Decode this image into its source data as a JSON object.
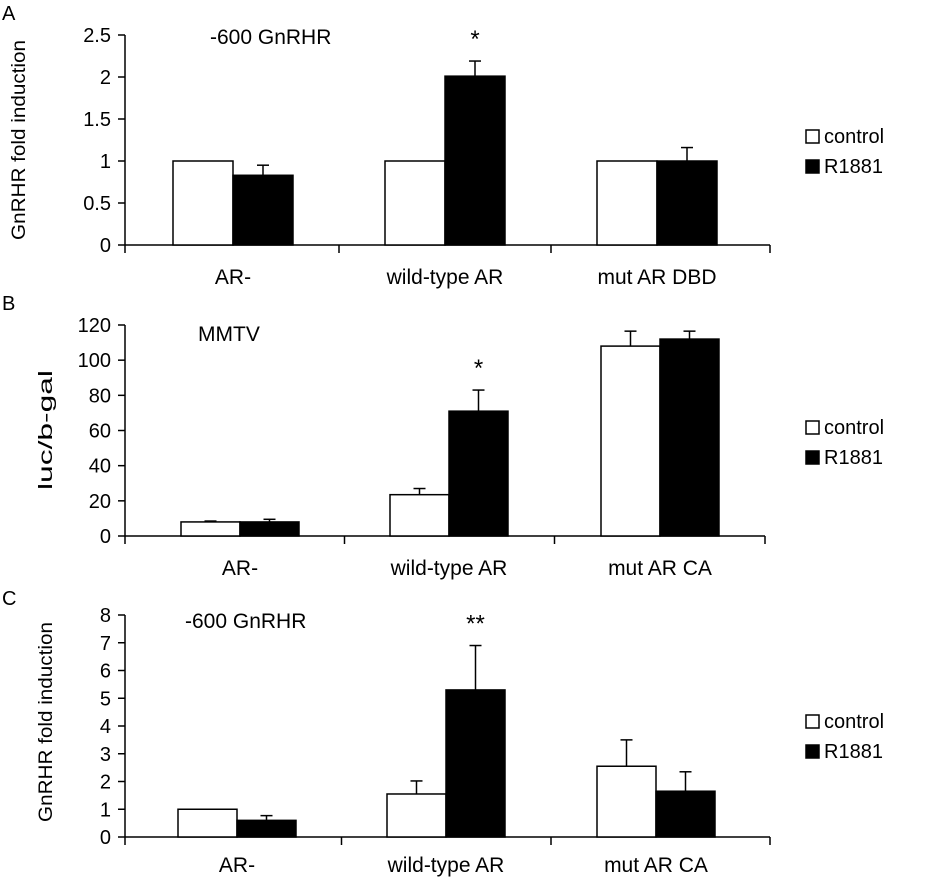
{
  "chart_data": [
    {
      "panel_label": "A",
      "type": "bar",
      "title": "-600 GnRHR",
      "ylabel": "GnRHR fold induction",
      "xlabel": "",
      "ylim": [
        0,
        2.5
      ],
      "yticks": [
        "0",
        "0.5",
        "1",
        "1.5",
        "2",
        "2.5"
      ],
      "yticks_values": [
        0,
        0.5,
        1,
        1.5,
        2,
        2.5
      ],
      "categories": [
        "AR-",
        "wild-type AR",
        "mut AR DBD"
      ],
      "series": [
        {
          "name": "control",
          "color": "#ffffff",
          "values": [
            1.0,
            1.0,
            1.0
          ],
          "errors": [
            0,
            0,
            0
          ]
        },
        {
          "name": "R1881",
          "color": "#000000",
          "values": [
            0.83,
            2.01,
            1.0
          ],
          "errors": [
            0.12,
            0.18,
            0.16
          ]
        }
      ],
      "annotations": [
        {
          "category": 1,
          "series": 1,
          "text": "*"
        }
      ],
      "legend": {
        "position": "right",
        "entries": [
          "control",
          "R1881"
        ]
      },
      "grid": false
    },
    {
      "panel_label": "B",
      "type": "bar",
      "title": "MMTV",
      "ylabel": "luc/b-gal",
      "xlabel": "",
      "ylim": [
        0,
        120
      ],
      "yticks": [
        "0",
        "20",
        "40",
        "60",
        "80",
        "100",
        "120"
      ],
      "yticks_values": [
        0,
        20,
        40,
        60,
        80,
        100,
        120
      ],
      "categories": [
        "AR-",
        "wild-type AR",
        "mut AR CA"
      ],
      "series": [
        {
          "name": "control",
          "color": "#ffffff",
          "values": [
            8,
            23.5,
            108
          ],
          "errors": [
            0.5,
            3.5,
            8.5
          ]
        },
        {
          "name": "R1881",
          "color": "#000000",
          "values": [
            8,
            71,
            112
          ],
          "errors": [
            1.5,
            12,
            4.5
          ]
        }
      ],
      "annotations": [
        {
          "category": 1,
          "series": 1,
          "text": "*"
        }
      ],
      "legend": {
        "position": "right",
        "entries": [
          "control",
          "R1881"
        ]
      },
      "grid": false
    },
    {
      "panel_label": "C",
      "type": "bar",
      "title": "-600 GnRHR",
      "ylabel": "GnRHR fold induction",
      "xlabel": "",
      "ylim": [
        0,
        8
      ],
      "yticks": [
        "0",
        "1",
        "2",
        "3",
        "4",
        "5",
        "6",
        "7",
        "8"
      ],
      "yticks_values": [
        0,
        1,
        2,
        3,
        4,
        5,
        6,
        7,
        8
      ],
      "categories": [
        "AR-",
        "wild-type AR",
        "mut AR CA"
      ],
      "series": [
        {
          "name": "control",
          "color": "#ffffff",
          "values": [
            1.0,
            1.55,
            2.55
          ],
          "errors": [
            0,
            0.47,
            0.95
          ]
        },
        {
          "name": "R1881",
          "color": "#000000",
          "values": [
            0.6,
            5.3,
            1.65
          ],
          "errors": [
            0.17,
            1.6,
            0.7
          ]
        }
      ],
      "annotations": [
        {
          "category": 1,
          "series": 1,
          "text": "**"
        }
      ],
      "legend": {
        "position": "right",
        "entries": [
          "control",
          "R1881"
        ]
      },
      "grid": false
    }
  ]
}
